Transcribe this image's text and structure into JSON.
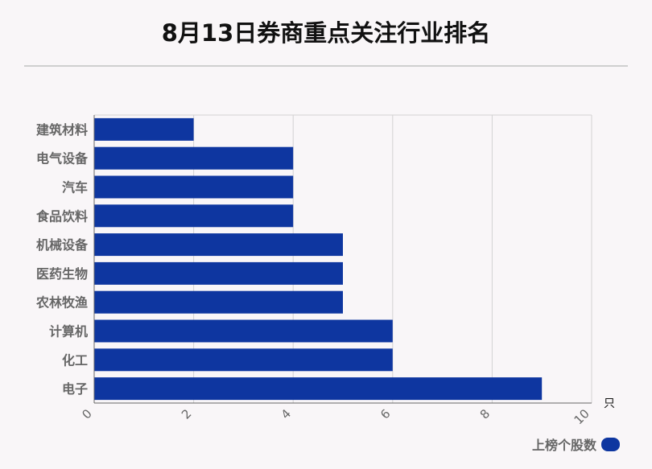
{
  "title": "8月13日券商重点关注行业排名",
  "unit": "只",
  "colors": {
    "bar": "#0e36a0",
    "grid": "#d2d2d2",
    "axis": "#666666"
  },
  "chart_data": {
    "type": "bar",
    "orientation": "horizontal",
    "categories": [
      "建筑材料",
      "电气设备",
      "汽车",
      "食品饮料",
      "机械设备",
      "医药生物",
      "农林牧渔",
      "计算机",
      "化工",
      "电子"
    ],
    "series": [
      {
        "name": "上榜个股数",
        "values": [
          2,
          4,
          4,
          4,
          5,
          5,
          5,
          6,
          6,
          9
        ]
      }
    ],
    "xlim": [
      0,
      10
    ],
    "xticks": [
      0,
      2,
      4,
      6,
      8,
      10
    ],
    "xlabel": "只",
    "grid": true,
    "legend": "bottom-right"
  }
}
